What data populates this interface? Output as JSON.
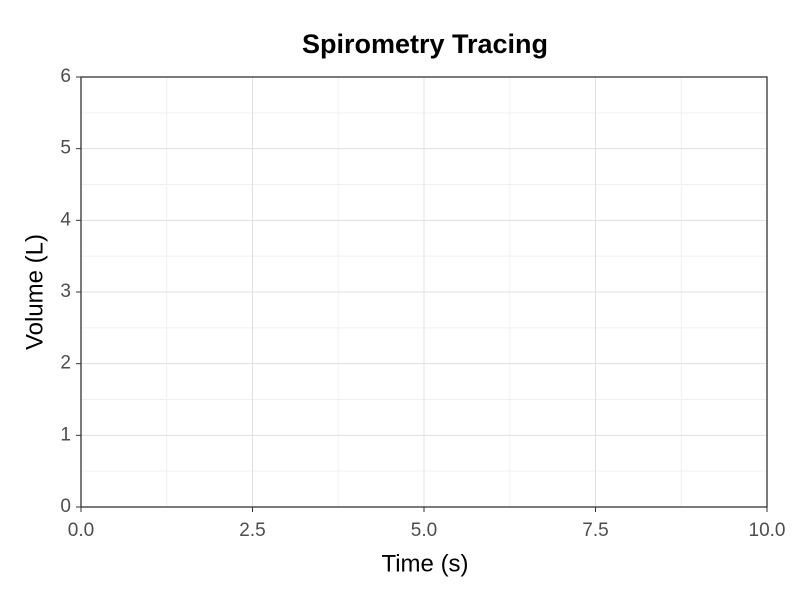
{
  "chart_data": {
    "type": "line",
    "title": "Spirometry Tracing",
    "x_label": "Time (s)",
    "y_label": "Volume (L)",
    "xlim": [
      0,
      10
    ],
    "xticks": [
      {
        "value": 0,
        "label": "0.0"
      },
      2.5,
      {
        "value": 5,
        "label": "5.0"
      },
      7.5,
      {
        "value": 10,
        "label": "10.0"
      }
    ],
    "ylim": [
      0,
      6
    ],
    "yticks": [
      0,
      1,
      2,
      3,
      4,
      5,
      6
    ],
    "grid": true,
    "series": []
  }
}
